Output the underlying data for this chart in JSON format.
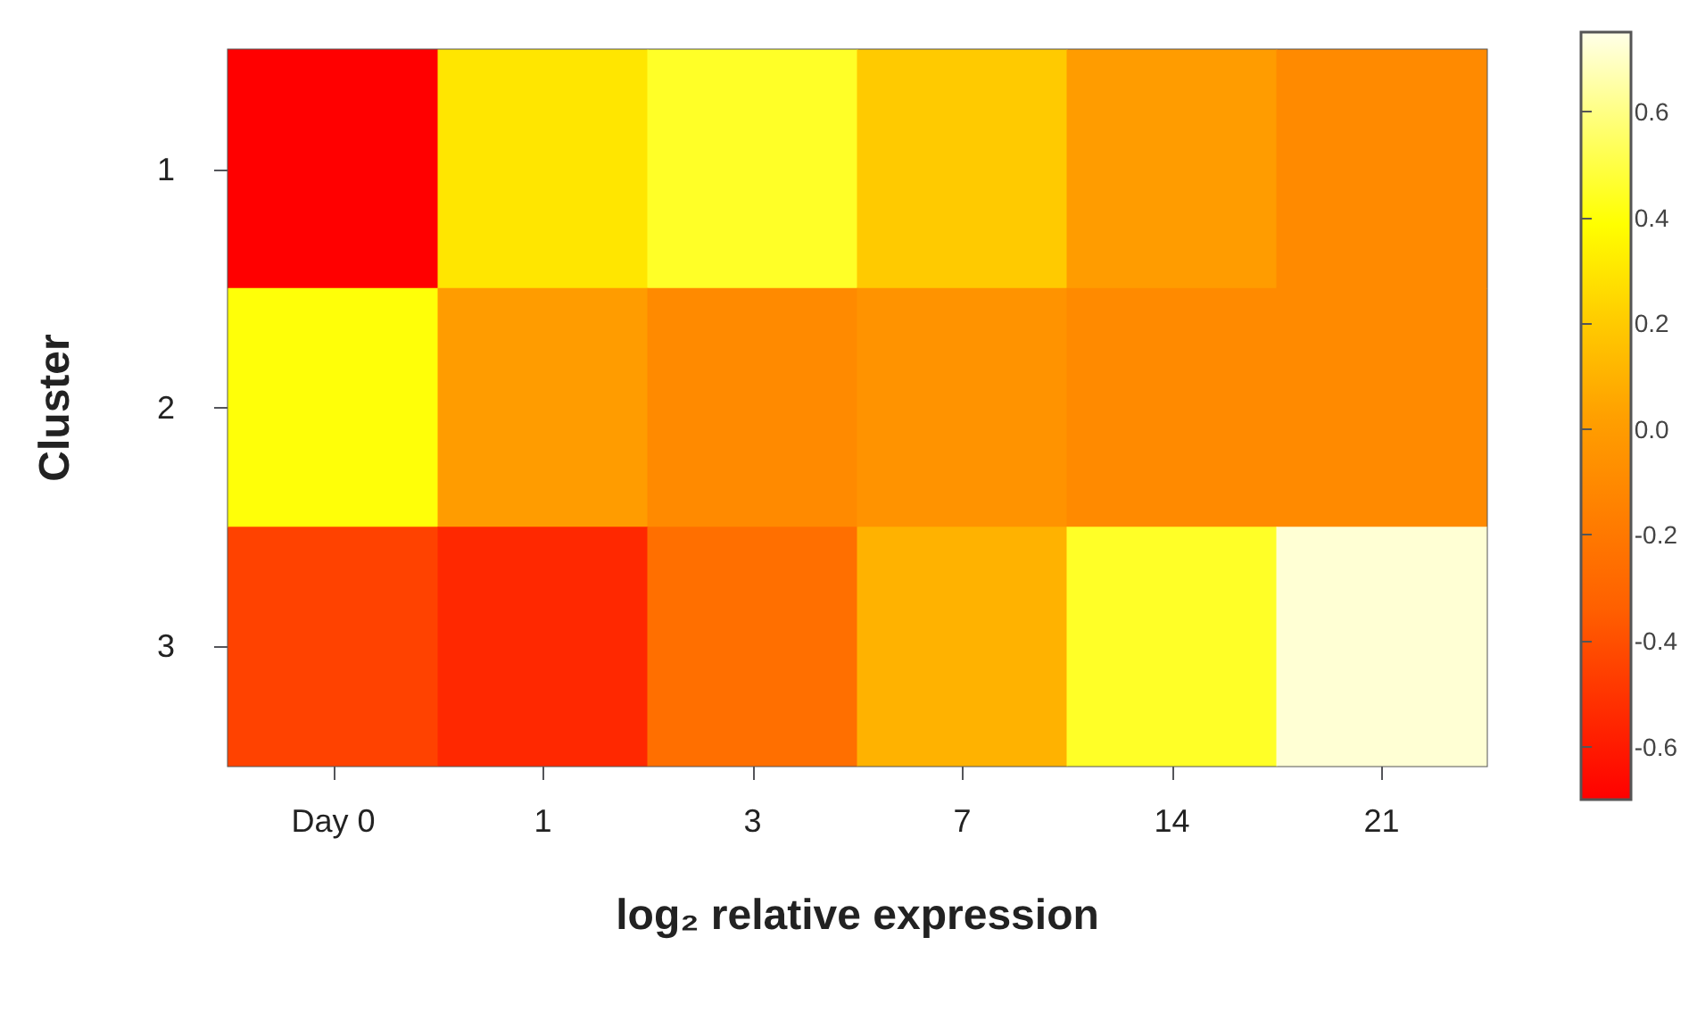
{
  "chart_data": {
    "type": "heatmap",
    "xlabel": "log₂ relative expression",
    "ylabel": "Cluster",
    "categories": [
      "Day 0",
      "1",
      "3",
      "7",
      "14",
      "21"
    ],
    "y_categories": [
      "1",
      "2",
      "3"
    ],
    "cells": [
      [
        -0.7,
        0.3,
        0.45,
        0.2,
        0.0,
        -0.1
      ],
      [
        0.4,
        0.0,
        -0.1,
        -0.05,
        -0.1,
        -0.1
      ],
      [
        -0.45,
        -0.55,
        -0.25,
        0.1,
        0.45,
        0.72
      ]
    ],
    "clim": [
      -0.7,
      0.75
    ],
    "cticks": [
      -0.6,
      -0.4,
      -0.2,
      {
        "value": 0,
        "label": "0.0"
      },
      0.2,
      0.4,
      0.6
    ]
  }
}
